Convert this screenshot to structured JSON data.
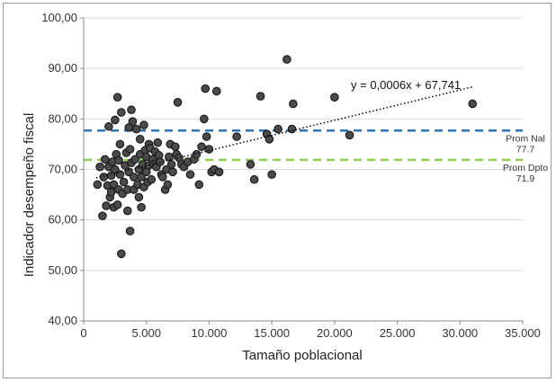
{
  "chart_data": {
    "type": "scatter",
    "title": "",
    "xlabel": "Tamaño poblacional",
    "ylabel": "Indicador desempeño fiscal",
    "xlim": [
      0,
      35000
    ],
    "ylim": [
      40,
      100
    ],
    "x_ticks": [
      "0",
      "5.000",
      "10.000",
      "15.000",
      "20.000",
      "25.000",
      "30.000",
      "35.000"
    ],
    "y_ticks": [
      "40,00",
      "50,00",
      "60,00",
      "70,00",
      "80,00",
      "90,00",
      "100,00"
    ],
    "grid": "horizontal",
    "marker_color": "#4a4a4a",
    "trendline": {
      "label": "y = 0,0006x + 67,741",
      "slope": 0.0006,
      "intercept": 67.741,
      "x_range": [
        1000,
        31000
      ],
      "color": "#000000"
    },
    "reference_lines": [
      {
        "name_line1": "Prom Nal",
        "name_line2": "77.7",
        "value": 77.7,
        "color": "#2e75b6"
      },
      {
        "name_line1": "Prom Dpto",
        "name_line2": "71.9",
        "value": 71.9,
        "color": "#8fd14f"
      }
    ],
    "points": [
      [
        1100,
        67
      ],
      [
        1300,
        70.5
      ],
      [
        1500,
        60.8
      ],
      [
        1600,
        68.5
      ],
      [
        1700,
        72
      ],
      [
        1800,
        62.8
      ],
      [
        1900,
        66.8
      ],
      [
        2000,
        70.5
      ],
      [
        2000,
        78.5
      ],
      [
        2100,
        64.5
      ],
      [
        2200,
        65.5
      ],
      [
        2200,
        68.8
      ],
      [
        2300,
        71.5
      ],
      [
        2400,
        62.5
      ],
      [
        2400,
        67
      ],
      [
        2500,
        70
      ],
      [
        2500,
        79.8
      ],
      [
        2600,
        73
      ],
      [
        2700,
        63
      ],
      [
        2700,
        84.3
      ],
      [
        2800,
        66
      ],
      [
        2800,
        71.8
      ],
      [
        2900,
        75
      ],
      [
        2900,
        69
      ],
      [
        3000,
        53.3
      ],
      [
        3000,
        81.3
      ],
      [
        3100,
        65.2
      ],
      [
        3200,
        67.5
      ],
      [
        3300,
        70.8
      ],
      [
        3400,
        73.3
      ],
      [
        3500,
        61.8
      ],
      [
        3500,
        66
      ],
      [
        3600,
        69.5
      ],
      [
        3600,
        78.3
      ],
      [
        3700,
        57.8
      ],
      [
        3700,
        74
      ],
      [
        3800,
        81.8
      ],
      [
        3800,
        71.3
      ],
      [
        3900,
        79.5
      ],
      [
        4000,
        66
      ],
      [
        4000,
        68.5
      ],
      [
        4100,
        72
      ],
      [
        4200,
        78
      ],
      [
        4300,
        67
      ],
      [
        4400,
        64.5
      ],
      [
        4400,
        70
      ],
      [
        4500,
        76
      ],
      [
        4500,
        73
      ],
      [
        4600,
        62.5
      ],
      [
        4600,
        68.5
      ],
      [
        4700,
        71
      ],
      [
        4800,
        78.8
      ],
      [
        4800,
        66.5
      ],
      [
        4900,
        73.8
      ],
      [
        5000,
        69.5
      ],
      [
        5000,
        72.5
      ],
      [
        5100,
        67.5
      ],
      [
        5200,
        75
      ],
      [
        5200,
        70.8
      ],
      [
        5300,
        74.2
      ],
      [
        5400,
        68
      ],
      [
        5500,
        72
      ],
      [
        5600,
        71
      ],
      [
        5700,
        73.5
      ],
      [
        5800,
        70.5
      ],
      [
        5900,
        75.3
      ],
      [
        6000,
        72.8
      ],
      [
        6100,
        71.5
      ],
      [
        6200,
        69
      ],
      [
        6300,
        68.5
      ],
      [
        6500,
        66
      ],
      [
        6600,
        70
      ],
      [
        6700,
        67
      ],
      [
        6800,
        72.5
      ],
      [
        6900,
        75
      ],
      [
        7000,
        71
      ],
      [
        7100,
        69.5
      ],
      [
        7300,
        74.5
      ],
      [
        7400,
        73
      ],
      [
        7500,
        83.3
      ],
      [
        7600,
        72.3
      ],
      [
        7800,
        71
      ],
      [
        8000,
        70.5
      ],
      [
        8300,
        71.5
      ],
      [
        8500,
        69
      ],
      [
        8800,
        72
      ],
      [
        9000,
        73
      ],
      [
        9200,
        67
      ],
      [
        9400,
        74.5
      ],
      [
        9600,
        80
      ],
      [
        9700,
        86
      ],
      [
        9800,
        76.5
      ],
      [
        10000,
        74
      ],
      [
        10200,
        69.5
      ],
      [
        10400,
        70
      ],
      [
        10600,
        85.5
      ],
      [
        10800,
        69.5
      ],
      [
        12200,
        76.5
      ],
      [
        13300,
        71
      ],
      [
        13600,
        68
      ],
      [
        14100,
        84.5
      ],
      [
        14600,
        77
      ],
      [
        14800,
        76
      ],
      [
        15000,
        69
      ],
      [
        15500,
        78
      ],
      [
        16200,
        91.8
      ],
      [
        16600,
        78
      ],
      [
        16700,
        83
      ],
      [
        20000,
        84.3
      ],
      [
        21200,
        76.8
      ],
      [
        31000,
        83
      ]
    ]
  }
}
